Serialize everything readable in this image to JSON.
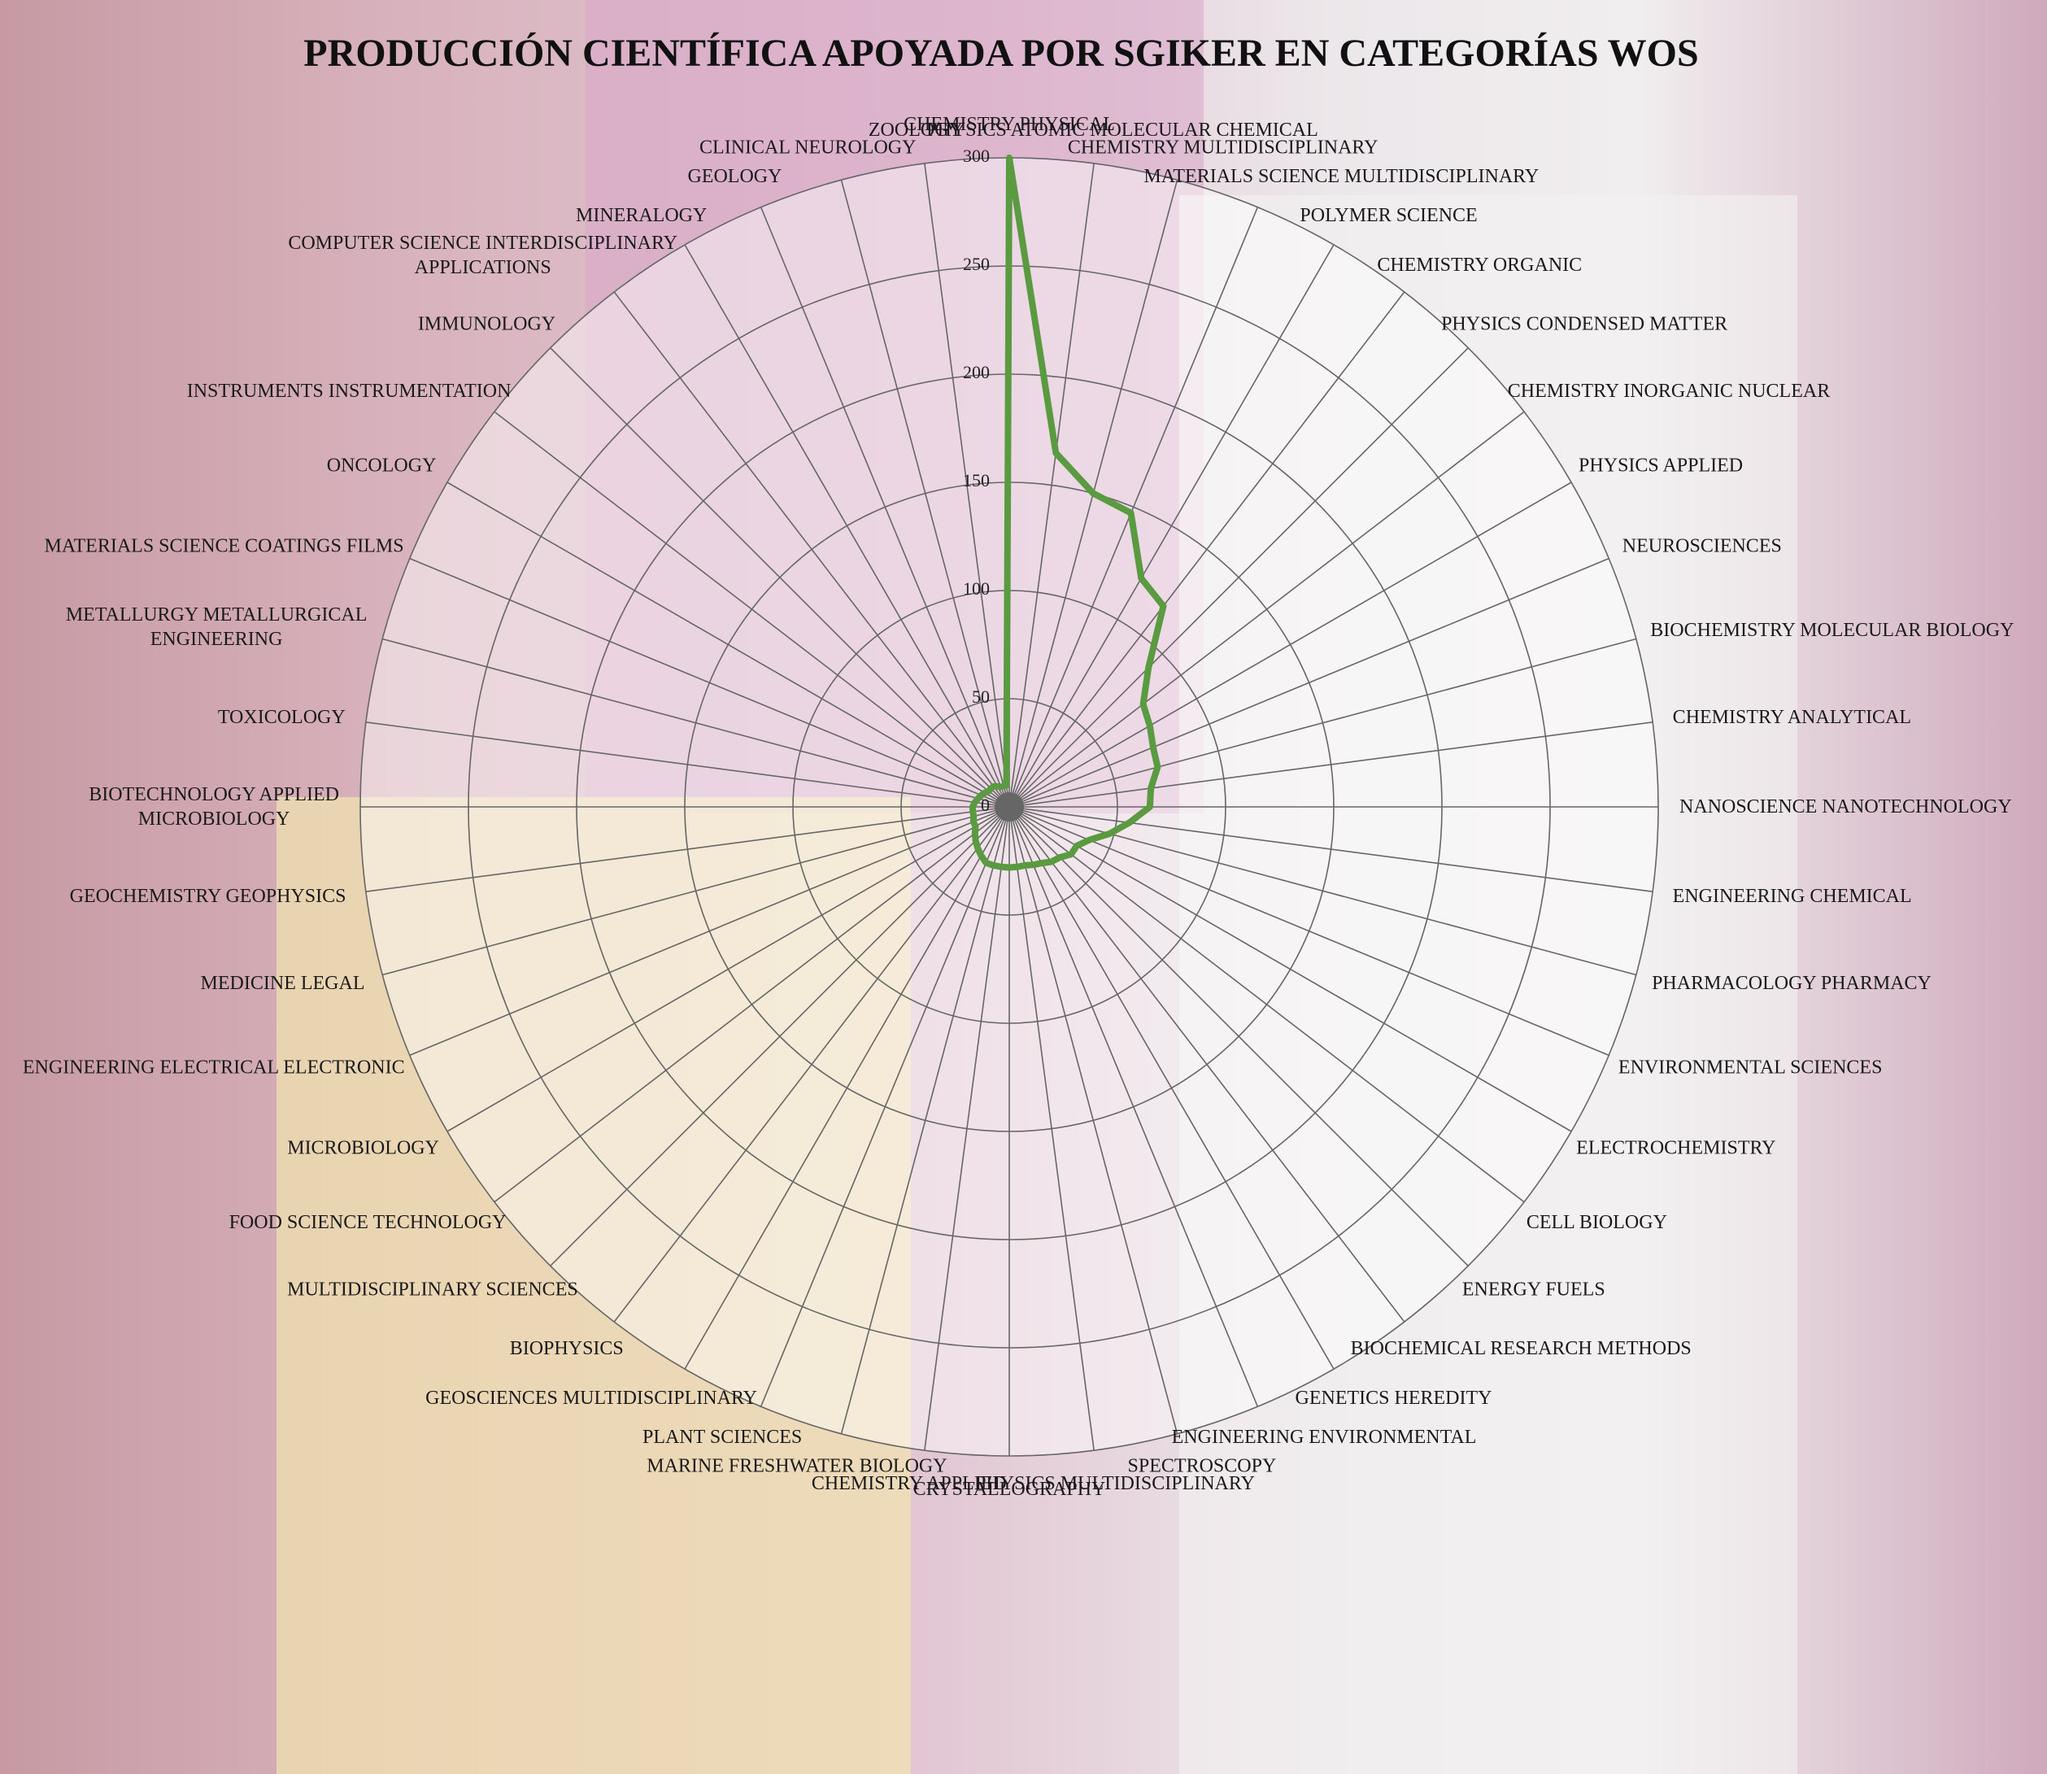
{
  "chart_data": {
    "type": "radar",
    "title": "PRODUCCIÓN CIENTÍFICA APOYADA POR SGIKER EN CATEGORÍAS WOS",
    "categories": [
      "CHEMISTRY PHYSICAL",
      "PHYSICS ATOMIC MOLECULAR CHEMICAL",
      "CHEMISTRY MULTIDISCIPLINARY",
      "MATERIALS SCIENCE MULTIDISCIPLINARY",
      "POLYMER SCIENCE",
      "CHEMISTRY ORGANIC",
      "PHYSICS CONDENSED MATTER",
      "CHEMISTRY INORGANIC NUCLEAR",
      "PHYSICS APPLIED",
      "NEUROSCIENCES",
      "BIOCHEMISTRY MOLECULAR BIOLOGY",
      "CHEMISTRY ANALYTICAL",
      "NANOSCIENCE NANOTECHNOLOGY",
      "ENGINEERING CHEMICAL",
      "PHARMACOLOGY PHARMACY",
      "ENVIRONMENTAL SCIENCES",
      "ELECTROCHEMISTRY",
      "CELL BIOLOGY",
      "ENERGY FUELS",
      "BIOCHEMICAL RESEARCH METHODS",
      "GENETICS HEREDITY",
      "ENGINEERING ENVIRONMENTAL",
      "SPECTROSCOPY",
      "PHYSICS MULTIDISCIPLINARY",
      "CRYSTALLOGRAPHY",
      "CHEMISTRY APPLIED",
      "MARINE FRESHWATER BIOLOGY",
      "PLANT SCIENCES",
      "GEOSCIENCES MULTIDISCIPLINARY",
      "BIOPHYSICS",
      "MULTIDISCIPLINARY SCIENCES",
      "FOOD SCIENCE TECHNOLOGY",
      "MICROBIOLOGY",
      "ENGINEERING ELECTRICAL ELECTRONIC",
      "MEDICINE LEGAL",
      "GEOCHEMISTRY GEOPHYSICS",
      "BIOTECHNOLOGY APPLIED\nMICROBIOLOGY",
      "TOXICOLOGY",
      "METALLURGY METALLURGICAL\nENGINEERING",
      "MATERIALS SCIENCE COATINGS FILMS",
      "ONCOLOGY",
      "INSTRUMENTS INSTRUMENTATION",
      "IMMUNOLOGY",
      "COMPUTER SCIENCE INTERDISCIPLINARY\nAPPLICATIONS",
      "MINERALOGY",
      "GEOLOGY",
      "CLINICAL NEUROLOGY",
      "ZOOLOGY"
    ],
    "values": [
      300,
      165,
      150,
      147,
      122,
      117,
      91,
      78,
      75,
      72,
      71,
      66,
      65,
      56,
      48,
      40,
      36,
      36,
      33,
      32,
      30,
      29,
      28,
      28,
      28,
      28,
      28,
      28,
      26,
      24,
      22,
      20,
      18,
      18,
      17,
      17,
      17,
      16,
      15,
      14,
      13,
      12,
      12,
      12,
      11,
      10,
      10,
      10
    ],
    "color": "#5a9a40",
    "ylim": [
      0,
      300
    ],
    "yticks": [
      0,
      50,
      100,
      150,
      200,
      250,
      300
    ],
    "grid": true
  }
}
